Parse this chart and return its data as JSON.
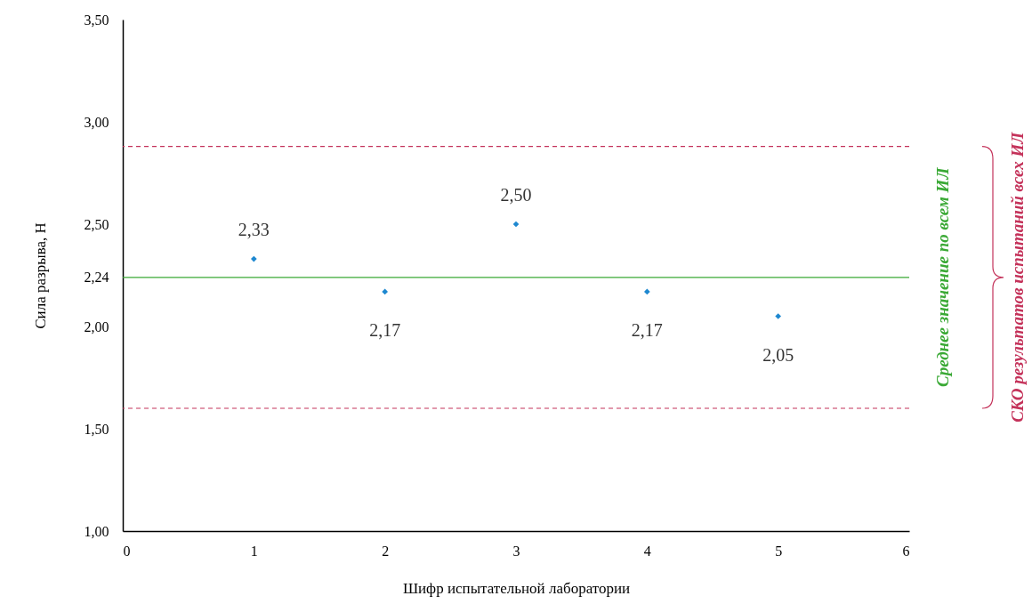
{
  "chart_data": {
    "type": "scatter",
    "xlabel": "Шифр испытательной лаборатории",
    "ylabel": "Сила разрыва, Н",
    "x": [
      1,
      2,
      3,
      4,
      5
    ],
    "values": [
      2.33,
      2.17,
      2.5,
      2.17,
      2.05
    ],
    "value_labels": [
      "2,33",
      "2,17",
      "2,50",
      "2,17",
      "2,05"
    ],
    "color": "#1e88d0",
    "marker": "diamond",
    "xlim": [
      0,
      6
    ],
    "xticks": [
      0,
      1,
      2,
      3,
      4,
      5,
      6
    ],
    "ylim": [
      1,
      3.5
    ],
    "yticks": [
      {
        "value": 1,
        "label": "1,00"
      },
      {
        "value": 1.5,
        "label": "1,50"
      },
      {
        "value": 2,
        "label": "2,00"
      },
      {
        "value": 2.24,
        "label": "2,24"
      },
      {
        "value": 2.5,
        "label": "2,50"
      },
      {
        "value": 3,
        "label": "3,00"
      },
      {
        "value": 3.5,
        "label": "3,50"
      }
    ],
    "ref_lines": [
      {
        "axis": "y",
        "value": 2.24,
        "label": "Среднее значение по всем ИЛ",
        "color": "#3aa935",
        "line_style": "solid"
      },
      {
        "axis": "y",
        "value": 2.88,
        "label": "СКО результатов испытаний всех ИЛ",
        "color": "#c4325a",
        "line_style": "dashed"
      },
      {
        "axis": "y",
        "value": 1.6,
        "label": null,
        "color": "#c4325a",
        "line_style": "dashed"
      }
    ]
  }
}
